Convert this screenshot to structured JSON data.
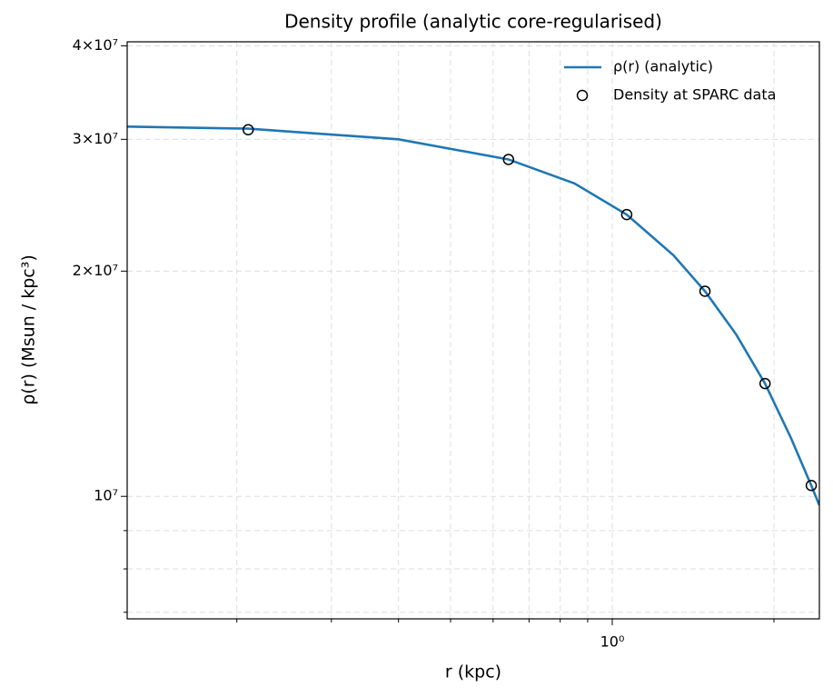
{
  "chart_data": {
    "type": "line",
    "title": "Density profile (analytic core-regularised)",
    "xlabel": "r (kpc)",
    "ylabel": "ρ(r) (Msun / kpc³)",
    "xscale": "log",
    "yscale": "log",
    "grid": true,
    "legend_loc": "upper right",
    "xlim": [
      0.125,
      2.43
    ],
    "ylim": [
      6860000,
      40500000
    ],
    "xticks": [
      {
        "value": 1,
        "label": "10⁰"
      }
    ],
    "x_minor_ticks": [
      0.2,
      0.3,
      0.4,
      0.5,
      0.6,
      0.7,
      0.8,
      0.9,
      2
    ],
    "yticks": [
      {
        "value": 10000000,
        "label": "10⁷"
      },
      {
        "value": 20000000,
        "label": "2×10⁷"
      },
      {
        "value": 30000000,
        "label": "3×10⁷"
      },
      {
        "value": 40000000,
        "label": "4×10⁷"
      }
    ],
    "y_minor_ticks": [
      7000000,
      8000000,
      9000000
    ],
    "series": [
      {
        "name": "ρ(r) (analytic)",
        "color": "#1f77b4",
        "kind": "line",
        "x": [
          0.125,
          0.21,
          0.4,
          0.641,
          0.85,
          1.064,
          1.3,
          1.488,
          1.7,
          1.925,
          2.15,
          2.347,
          2.43
        ],
        "values": [
          31200000,
          31000000,
          30000000,
          28200000,
          26200000,
          23800000,
          21000000,
          18800000,
          16470000,
          14150000,
          11980000,
          10340000,
          9730000
        ]
      },
      {
        "name": "Density at SPARC data",
        "color": "#000000",
        "kind": "scatter",
        "x": [
          0.21,
          0.641,
          1.064,
          1.488,
          1.925,
          2.347
        ],
        "values": [
          30900000,
          28200000,
          23800000,
          18800000,
          14150000,
          10340000
        ]
      }
    ]
  }
}
